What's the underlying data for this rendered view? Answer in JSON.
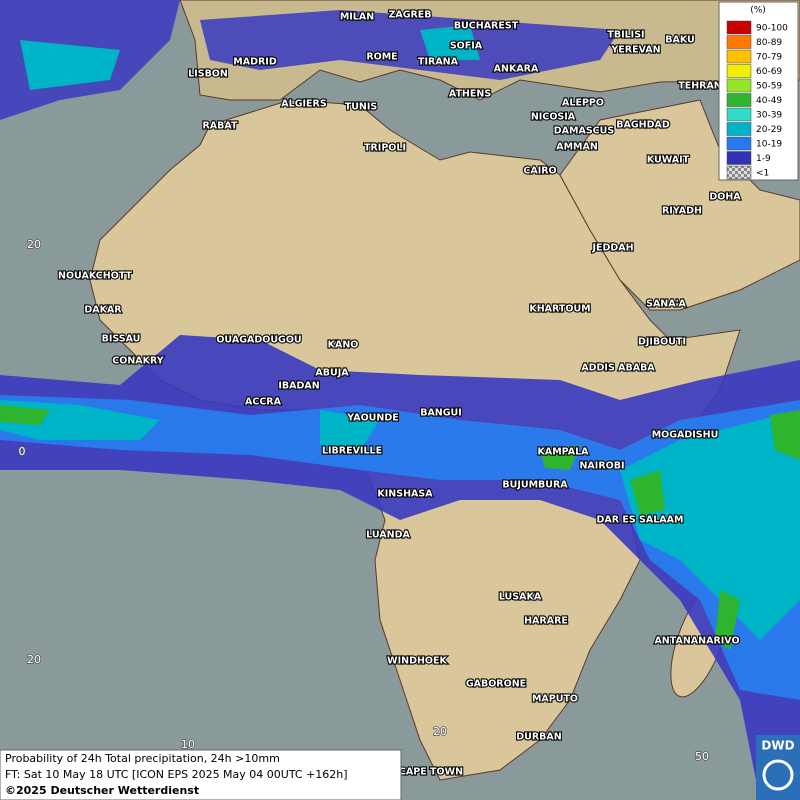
{
  "map": {
    "legend": {
      "title": "(%)",
      "items": [
        {
          "label": "90-100",
          "color": "#c80000"
        },
        {
          "label": "80-89",
          "color": "#ff7800"
        },
        {
          "label": "70-79",
          "color": "#ffc000"
        },
        {
          "label": "60-69",
          "color": "#f0f000"
        },
        {
          "label": "50-59",
          "color": "#96e628"
        },
        {
          "label": "40-49",
          "color": "#2eb42e"
        },
        {
          "label": "30-39",
          "color": "#32dcc8"
        },
        {
          "label": "20-29",
          "color": "#00b4c8"
        },
        {
          "label": "10-19",
          "color": "#2878f0"
        },
        {
          "label": "1-9",
          "color": "#3232b4"
        },
        {
          "label": "<1",
          "color": "#b4b4b4"
        }
      ]
    },
    "latitude_labels": [
      "20",
      "0",
      "20"
    ],
    "longitude_labels": [
      "10",
      "20",
      "50"
    ],
    "cities": [
      "MILAN",
      "ZAGREB",
      "BUCHAREST",
      "TBILISI",
      "BAKU",
      "SOFIA",
      "YEREVAN",
      "MADRID",
      "ROME",
      "TIRANA",
      "ANKARA",
      "LISBON",
      "TEHRAN",
      "ATHENS",
      "ALGIERS",
      "TUNIS",
      "ALEPPO",
      "RABAT",
      "NICOSIA",
      "BAGHDAD",
      "DAMASCUS",
      "TRIPOLI",
      "AMMAN",
      "KUWAIT",
      "CAIRO",
      "DOHA",
      "RIYADH",
      "JEDDAH",
      "NOUAKCHOTT",
      "SANA'A",
      "KHARTOUM",
      "DAKAR",
      "BISSAU",
      "OUAGADOUGOU",
      "DJIBOUTI",
      "KANO",
      "CONAKRY",
      "ADDIS ABABA",
      "ABUJA",
      "IBADAN",
      "ACCRA",
      "YAOUNDE",
      "BANGUI",
      "MOGADISHU",
      "LIBREVILLE",
      "KAMPALA",
      "NAIROBI",
      "BUJUMBURA",
      "KINSHASA",
      "DAR ES SALAAM",
      "LUANDA",
      "LUSAKA",
      "HARARE",
      "ANTANANARIVO",
      "WINDHOEK",
      "GABORONE",
      "MAPUTO",
      "DURBAN",
      "CAPE TOWN"
    ],
    "footer": [
      "Probability of 24h Total precipitation, 24h >10mm",
      "FT: Sat 10 May 18 UTC [ICON EPS 2025 May 04 00UTC +162h]",
      "©2025 Deutscher Wetterdienst"
    ],
    "logo": "DWD"
  }
}
